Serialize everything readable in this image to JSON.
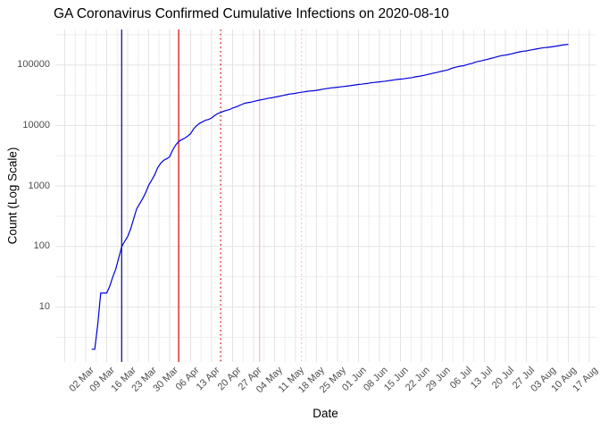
{
  "chart_data": {
    "type": "line",
    "title": "GA Coronavirus Confirmed Cumulative Infections on 2020-08-10",
    "xlabel": "Date",
    "ylabel": "Count (Log Scale)",
    "y_scale": "log10",
    "y_tick_labels": [
      "10",
      "100",
      "1000",
      "10000",
      "100000"
    ],
    "x_tick_labels": [
      "02 Mar",
      "09 Mar",
      "16 Mar",
      "23 Mar",
      "30 Mar",
      "06 Apr",
      "13 Apr",
      "20 Apr",
      "27 Apr",
      "04 May",
      "11 May",
      "18 May",
      "25 May",
      "01 Jun",
      "08 Jun",
      "15 Jun",
      "22 Jun",
      "29 Jun",
      "06 Jul",
      "13 Jul",
      "20 Jul",
      "27 Jul",
      "03 Aug",
      "10 Aug",
      "17 Aug"
    ],
    "x_range": [
      "2020-03-02",
      "2020-08-17"
    ],
    "ylim": [
      2,
      390000
    ],
    "grid": true,
    "legend": "none",
    "colors": {
      "series_line": "#0000DC",
      "grid_major": "#e3e3e3",
      "grid_minor": "#ededed",
      "tick_text": "#4d4d4d"
    },
    "series": [
      {
        "name": "GA confirmed cumulative infections",
        "color": "#0000DC",
        "start_date": "2020-03-04",
        "frequency": "daily",
        "values": [
          2,
          2,
          5,
          17,
          17,
          17,
          22,
          31,
          42,
          64,
          99,
          121,
          146,
          197,
          287,
          420,
          507,
          620,
          772,
          1026,
          1247,
          1525,
          2001,
          2366,
          2651,
          2809,
          3032,
          3929,
          4748,
          5444,
          5831,
          6160,
          6647,
          7314,
          8818,
          9901,
          10885,
          11485,
          12261,
          12550,
          13315,
          14578,
          15669,
          16369,
          17194,
          17841,
          18301,
          19398,
          20166,
          21102,
          22147,
          23216,
          23773,
          24225,
          24854,
          25646,
          26264,
          26935,
          27492,
          28332,
          28602,
          29368,
          29998,
          30697,
          31439,
          32181,
          33091,
          33441,
          34002,
          34848,
          35427,
          36108,
          36772,
          37147,
          37552,
          38081,
          38855,
          39801,
          40405,
          41218,
          41902,
          42242,
          42838,
          43400,
          44111,
          44638,
          45302,
          46093,
          46906,
          47618,
          48207,
          48894,
          49542,
          50621,
          51309,
          51898,
          52497,
          53249,
          54002,
          54973,
          55783,
          56801,
          57681,
          58414,
          59078,
          60030,
          61030,
          62009,
          63809,
          64701,
          65928,
          67678,
          69381,
          71095,
          73319,
          74985,
          77210,
          79417,
          81291,
          83840,
          87709,
          90493,
          93319,
          95516,
          97064,
          100470,
          103890,
          106727,
          111211,
          114401,
          116926,
          120569,
          123963,
          127834,
          131275,
          135183,
          139880,
          143414,
          145575,
          148988,
          152302,
          156588,
          161420,
          165188,
          168647,
          170843,
          175052,
          178323,
          182286,
          186352,
          190012,
          193177,
          195435,
          197948,
          201713,
          204895,
          209004,
          213427,
          216596,
          219025
        ]
      }
    ],
    "event_lines": [
      {
        "date": "2020-03-14",
        "color": "#00008B",
        "style": "solid"
      },
      {
        "date": "2020-04-02",
        "color": "#E00000",
        "style": "solid"
      },
      {
        "date": "2020-04-16",
        "color": "#CC0000",
        "style": "dotted"
      },
      {
        "date": "2020-04-29",
        "color": "#FFB3BC",
        "style": "solid"
      },
      {
        "date": "2020-05-13",
        "color": "#FFB3BC",
        "style": "dotted"
      }
    ]
  }
}
